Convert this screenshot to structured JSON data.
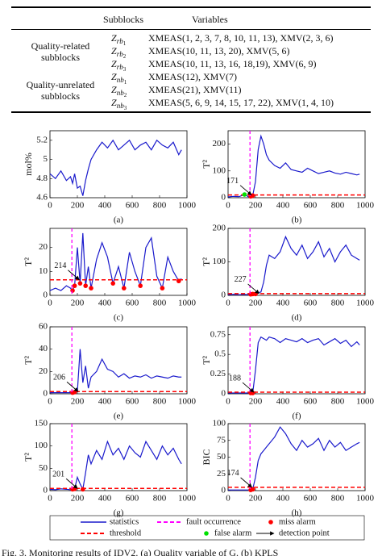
{
  "table": {
    "header": [
      "Subblocks",
      "Variables"
    ],
    "groups": [
      {
        "label": "Quality-related subblocks",
        "rows": [
          {
            "symbol": "Z",
            "sub": "rb",
            "index": "1",
            "variables": "XMEAS(1, 2, 3, 7, 8, 10, 11, 13), XMV(2, 3, 6)"
          },
          {
            "symbol": "Z",
            "sub": "rb",
            "index": "2",
            "variables": "XMEAS(10, 11, 13, 20), XMV(5, 6)"
          },
          {
            "symbol": "Z",
            "sub": "rb",
            "index": "3",
            "variables": "XMEAS(10, 11, 13, 16, 18,19), XMV(6, 9)"
          }
        ]
      },
      {
        "label": "Quality-unrelated subblocks",
        "rows": [
          {
            "symbol": "Z",
            "sub": "nb",
            "index": "1",
            "variables": "XMEAS(12), XMV(7)"
          },
          {
            "symbol": "Z",
            "sub": "nb",
            "index": "2",
            "variables": "XMEAS(21), XMV(11)"
          },
          {
            "symbol": "Z",
            "sub": "nb",
            "index": "3",
            "variables": "XMEAS(5, 6, 9, 14, 15, 17, 22), XMV(1, 4, 10)"
          }
        ]
      }
    ]
  },
  "chart_data": [
    {
      "type": "line",
      "label": "(a)",
      "ylabel": "mol%",
      "xlim": [
        0,
        1000
      ],
      "xticks": [
        0,
        200,
        400,
        600,
        800,
        1000
      ],
      "ylim": [
        4.6,
        5.3
      ],
      "yticks": [
        4.6,
        4.8,
        5,
        5.2
      ],
      "x": [
        0,
        40,
        80,
        120,
        150,
        165,
        180,
        200,
        220,
        240,
        260,
        280,
        300,
        340,
        380,
        420,
        460,
        500,
        540,
        580,
        620,
        660,
        700,
        740,
        780,
        820,
        860,
        900,
        940,
        960
      ],
      "values": [
        4.85,
        4.8,
        4.88,
        4.78,
        4.82,
        4.75,
        4.85,
        4.7,
        4.72,
        4.62,
        4.78,
        4.9,
        5.0,
        5.1,
        5.18,
        5.12,
        5.2,
        5.1,
        5.15,
        5.2,
        5.1,
        5.15,
        5.18,
        5.1,
        5.2,
        5.15,
        5.12,
        5.18,
        5.05,
        5.1
      ]
    },
    {
      "type": "line",
      "label": "(b)",
      "ylabel": "T²",
      "xlim": [
        0,
        1000
      ],
      "xticks": [
        0,
        200,
        400,
        600,
        800,
        1000
      ],
      "ylim": [
        0,
        250
      ],
      "yticks": [
        0,
        100,
        200
      ],
      "threshold": 10,
      "fault": 160,
      "detection": 171,
      "x": [
        0,
        40,
        80,
        120,
        150,
        165,
        180,
        200,
        220,
        240,
        260,
        280,
        300,
        340,
        380,
        420,
        460,
        500,
        540,
        580,
        620,
        660,
        700,
        740,
        780,
        820,
        860,
        900,
        940,
        960
      ],
      "values": [
        3,
        5,
        4,
        12,
        3,
        5,
        8,
        60,
        180,
        230,
        200,
        160,
        140,
        120,
        110,
        130,
        105,
        100,
        95,
        110,
        100,
        90,
        95,
        100,
        92,
        88,
        95,
        90,
        85,
        88
      ]
    },
    {
      "type": "line",
      "label": "(c)",
      "ylabel": "T²",
      "xlim": [
        0,
        1000
      ],
      "xticks": [
        0,
        200,
        400,
        600,
        800,
        1000
      ],
      "ylim": [
        0,
        28
      ],
      "yticks": [
        0,
        10,
        20
      ],
      "threshold": 6.5,
      "fault": 160,
      "detection": 214,
      "x": [
        0,
        40,
        80,
        120,
        150,
        165,
        180,
        200,
        220,
        240,
        260,
        280,
        300,
        340,
        380,
        420,
        460,
        500,
        540,
        580,
        620,
        660,
        700,
        740,
        780,
        820,
        860,
        900,
        940,
        960
      ],
      "values": [
        2,
        3,
        2,
        4,
        3,
        2,
        4,
        20,
        5,
        26,
        4,
        12,
        3,
        15,
        22,
        16,
        5,
        12,
        3,
        18,
        10,
        4,
        20,
        24,
        8,
        3,
        16,
        10,
        6,
        7
      ]
    },
    {
      "type": "line",
      "label": "(d)",
      "ylabel": "T²",
      "xlim": [
        0,
        1000
      ],
      "xticks": [
        0,
        200,
        400,
        600,
        800,
        1000
      ],
      "ylim": [
        0,
        200
      ],
      "yticks": [
        0,
        100,
        200
      ],
      "threshold": 5,
      "fault": 160,
      "detection": 227,
      "x": [
        0,
        40,
        80,
        120,
        150,
        165,
        180,
        200,
        220,
        240,
        260,
        280,
        300,
        340,
        380,
        420,
        460,
        500,
        540,
        580,
        620,
        660,
        700,
        740,
        780,
        820,
        860,
        900,
        940,
        960
      ],
      "values": [
        2,
        3,
        2,
        3,
        2,
        3,
        4,
        4,
        8,
        10,
        40,
        90,
        120,
        110,
        130,
        175,
        140,
        120,
        150,
        110,
        130,
        160,
        115,
        140,
        100,
        130,
        150,
        120,
        110,
        105
      ]
    },
    {
      "type": "line",
      "label": "(e)",
      "ylabel": "T²",
      "xlim": [
        0,
        1000
      ],
      "xticks": [
        0,
        200,
        400,
        600,
        800,
        1000
      ],
      "ylim": [
        0,
        60
      ],
      "yticks": [
        0,
        20,
        40,
        60
      ],
      "threshold": 2,
      "fault": 160,
      "detection": 206,
      "x": [
        0,
        40,
        80,
        120,
        150,
        165,
        180,
        200,
        220,
        240,
        260,
        280,
        300,
        340,
        380,
        420,
        460,
        500,
        540,
        580,
        620,
        660,
        700,
        740,
        780,
        820,
        860,
        900,
        940,
        960
      ],
      "values": [
        1,
        1,
        1,
        1,
        1,
        1,
        1.5,
        2,
        40,
        10,
        25,
        5,
        15,
        20,
        31,
        22,
        20,
        15,
        18,
        14,
        16,
        15,
        17,
        14,
        16,
        15,
        14,
        16,
        15,
        15
      ]
    },
    {
      "type": "line",
      "label": "(f)",
      "ylabel": "T²",
      "xlim": [
        0,
        1000
      ],
      "xticks": [
        0,
        200,
        400,
        600,
        800,
        1000
      ],
      "ylim": [
        0,
        0.85
      ],
      "yticks": [
        0,
        0.25,
        0.5,
        0.75
      ],
      "threshold": 0.02,
      "fault": 160,
      "detection": 188,
      "x": [
        0,
        40,
        80,
        120,
        150,
        165,
        180,
        200,
        220,
        240,
        260,
        280,
        300,
        340,
        380,
        420,
        460,
        500,
        540,
        580,
        620,
        660,
        700,
        740,
        780,
        820,
        860,
        900,
        940,
        960
      ],
      "values": [
        0.01,
        0.01,
        0.01,
        0.01,
        0.01,
        0.01,
        0.01,
        0.3,
        0.65,
        0.72,
        0.7,
        0.68,
        0.72,
        0.7,
        0.65,
        0.7,
        0.68,
        0.66,
        0.7,
        0.65,
        0.68,
        0.7,
        0.62,
        0.66,
        0.7,
        0.64,
        0.68,
        0.6,
        0.66,
        0.62
      ]
    },
    {
      "type": "line",
      "label": "(g)",
      "ylabel": "T²",
      "xlim": [
        0,
        1000
      ],
      "xticks": [
        0,
        200,
        400,
        600,
        800,
        1000
      ],
      "ylim": [
        0,
        150
      ],
      "yticks": [
        0,
        50,
        100,
        150
      ],
      "threshold": 5,
      "fault": 160,
      "detection": 201,
      "x": [
        0,
        40,
        80,
        120,
        150,
        165,
        180,
        200,
        220,
        240,
        260,
        280,
        300,
        340,
        380,
        420,
        460,
        500,
        540,
        580,
        620,
        660,
        700,
        740,
        780,
        820,
        860,
        900,
        940,
        960
      ],
      "values": [
        3,
        2,
        4,
        3,
        2,
        3,
        4,
        30,
        15,
        3,
        40,
        80,
        60,
        90,
        70,
        110,
        80,
        95,
        70,
        100,
        85,
        75,
        110,
        90,
        70,
        100,
        80,
        95,
        70,
        60
      ]
    },
    {
      "type": "line",
      "label": "(h)",
      "ylabel": "BIC",
      "xlim": [
        0,
        1000
      ],
      "xticks": [
        0,
        200,
        400,
        600,
        800,
        1000
      ],
      "ylim": [
        0,
        100
      ],
      "yticks": [
        0,
        25,
        50,
        75,
        100
      ],
      "threshold": 5,
      "fault": 160,
      "detection": 174,
      "x": [
        0,
        40,
        80,
        120,
        150,
        165,
        180,
        200,
        220,
        240,
        260,
        280,
        300,
        340,
        380,
        420,
        460,
        500,
        540,
        580,
        620,
        660,
        700,
        740,
        780,
        820,
        860,
        900,
        940,
        960
      ],
      "values": [
        1,
        1,
        1,
        1,
        1,
        1,
        2,
        20,
        45,
        55,
        60,
        65,
        70,
        80,
        95,
        85,
        70,
        60,
        75,
        65,
        70,
        78,
        60,
        75,
        65,
        72,
        60,
        65,
        70,
        72
      ]
    }
  ],
  "legend": [
    {
      "label": "statistics",
      "color": "#1a1acc",
      "style": "line"
    },
    {
      "label": "fault occurrence",
      "color": "#ff00ff",
      "style": "dashed"
    },
    {
      "label": "miss alarm",
      "color": "#ff0000",
      "style": "marker"
    },
    {
      "label": "threshold",
      "color": "#ff0000",
      "style": "dashed"
    },
    {
      "label": "false alarm",
      "color": "#00e000",
      "style": "marker"
    },
    {
      "label": "detection point",
      "color": "#000000",
      "style": "arrow"
    }
  ],
  "caption": "Fig. 3.    Monitoring results of IDV2. (a) Quality variable of G. (b) KPLS"
}
